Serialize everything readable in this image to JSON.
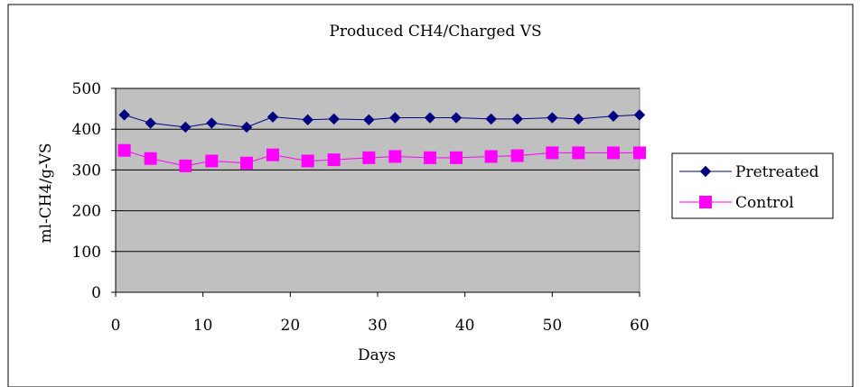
{
  "chart_data": {
    "type": "line",
    "title": "Produced CH4/Charged VS",
    "xlabel": "Days",
    "ylabel": "ml-CH4/g-VS",
    "xlim": [
      0,
      60
    ],
    "ylim": [
      0,
      500
    ],
    "xticks": [
      0,
      10,
      20,
      30,
      40,
      50,
      60
    ],
    "yticks": [
      0,
      100,
      200,
      300,
      400,
      500
    ],
    "grid": true,
    "legend_position": "right",
    "plot_background": "#c0c0c0",
    "series": [
      {
        "name": "Pretreated",
        "color": "#000080",
        "marker": "diamond",
        "x": [
          1,
          4,
          8,
          11,
          15,
          18,
          22,
          25,
          29,
          32,
          36,
          39,
          43,
          46,
          50,
          53,
          57,
          60
        ],
        "y": [
          435,
          415,
          405,
          415,
          405,
          430,
          423,
          425,
          423,
          428,
          428,
          428,
          425,
          425,
          428,
          425,
          432,
          435
        ]
      },
      {
        "name": "Control",
        "color": "#ff00ff",
        "marker": "square",
        "x": [
          1,
          4,
          8,
          11,
          15,
          18,
          22,
          25,
          29,
          32,
          36,
          39,
          43,
          46,
          50,
          53,
          57,
          60
        ],
        "y": [
          348,
          328,
          310,
          322,
          317,
          337,
          322,
          325,
          330,
          333,
          330,
          330,
          333,
          335,
          342,
          342,
          342,
          342
        ]
      }
    ]
  }
}
